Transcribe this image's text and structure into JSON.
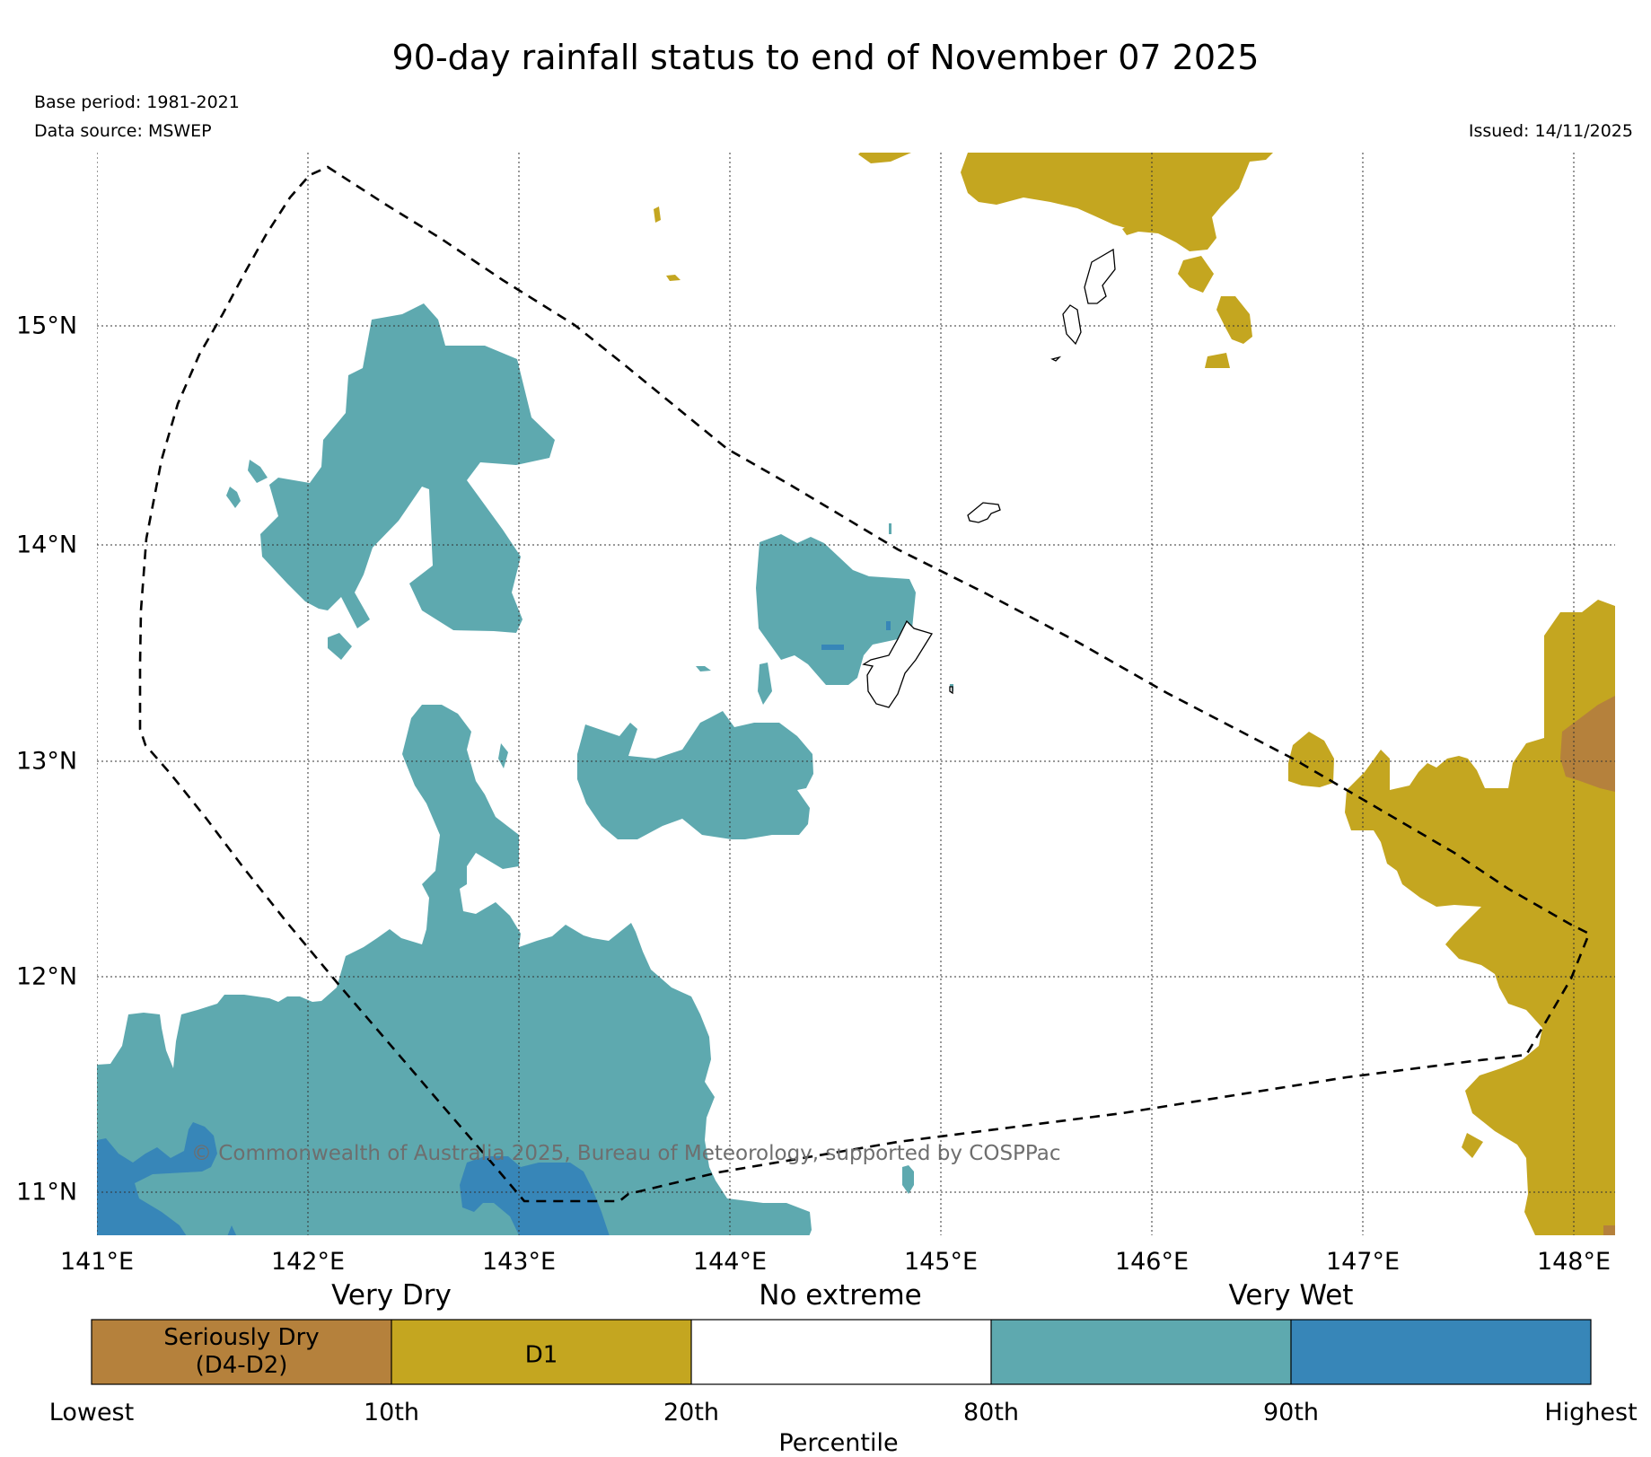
{
  "header": {
    "title": "90-day rainfall status to end of November 07 2025",
    "base_period": "Base period: 1981-2021",
    "data_source": "Data source: MSWEP",
    "issued": "Issued: 14/11/2025"
  },
  "map": {
    "lon_labels": [
      "141°E",
      "142°E",
      "143°E",
      "144°E",
      "145°E",
      "146°E",
      "147°E",
      "148°E"
    ],
    "lat_labels": [
      "15°N",
      "14°N",
      "13°N",
      "12°N",
      "11°N"
    ],
    "copyright": "© Commonwealth of Australia 2025, Bureau of Meteorology, supported by COSPPac"
  },
  "legend": {
    "category_labels": [
      "Very Dry",
      "No extreme",
      "Very Wet"
    ],
    "classes": [
      {
        "label_line1": "Seriously Dry",
        "label_line2": "(D4-D2)",
        "color": "#b5813c"
      },
      {
        "label_line1": "D1",
        "label_line2": "",
        "color": "#c4a620"
      },
      {
        "label_line1": "",
        "label_line2": "",
        "color": "#ffffff"
      },
      {
        "label_line1": "",
        "label_line2": "",
        "color": "#5ea9af"
      },
      {
        "label_line1": "",
        "label_line2": "",
        "color": "#3786b8"
      }
    ],
    "percentile_ticks": [
      "Lowest",
      "10th",
      "20th",
      "80th",
      "90th",
      "Highest"
    ],
    "axis_title": "Percentile"
  },
  "colors": {
    "seriously_dry": "#b5813c",
    "d1": "#c4a620",
    "wet_80_90": "#5ea9af",
    "wet_90_plus": "#3786b8"
  }
}
